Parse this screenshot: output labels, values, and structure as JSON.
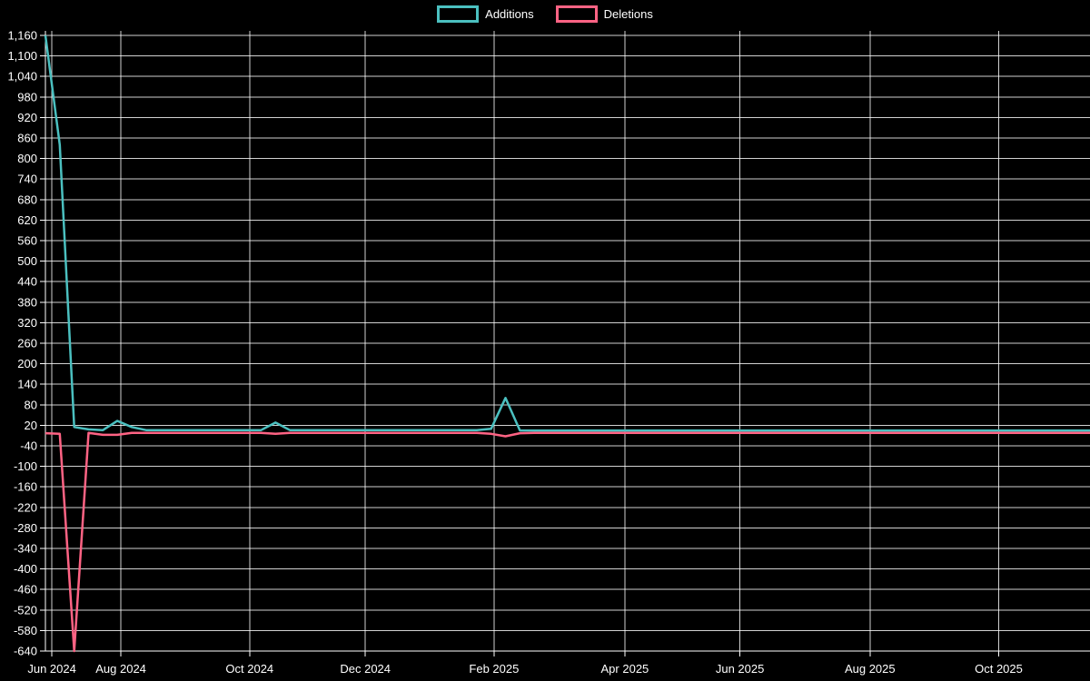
{
  "chart_data": {
    "type": "line",
    "title": "",
    "background_color": "#000000",
    "text_color": "#ffffff",
    "grid_color": "#ffffff",
    "legend_position": "top",
    "x_unit": "weeks since first data point",
    "weeks_total": 72.65,
    "x_ticks": [
      {
        "label": "Jun 2024",
        "week": 0.45
      },
      {
        "label": "Aug 2024",
        "week": 5.25
      },
      {
        "label": "Oct 2024",
        "week": 14.2
      },
      {
        "label": "Dec 2024",
        "week": 22.25
      },
      {
        "label": "Feb 2025",
        "week": 31.2
      },
      {
        "label": "Apr 2025",
        "week": 40.3
      },
      {
        "label": "Jun 2025",
        "week": 48.3
      },
      {
        "label": "Aug 2025",
        "week": 57.35
      },
      {
        "label": "Oct 2025",
        "week": 66.3
      }
    ],
    "y_axis": {
      "min": -640,
      "max": 1160,
      "step": 60
    },
    "series": [
      {
        "name": "Additions",
        "color": "#4bc0c0",
        "values": [
          1160,
          840,
          15,
          8,
          6,
          33,
          15,
          6,
          6,
          6,
          6,
          6,
          6,
          6,
          6,
          6,
          28,
          6,
          6,
          6,
          6,
          6,
          6,
          6,
          6,
          6,
          6,
          6,
          6,
          6,
          6,
          10,
          100,
          5,
          5,
          5,
          5,
          5,
          5,
          5,
          5,
          5,
          5,
          5,
          5,
          5,
          5,
          5,
          5,
          5,
          5,
          5,
          5,
          5,
          5,
          5,
          5,
          5,
          5,
          5,
          5,
          5,
          5,
          5,
          5,
          5,
          5,
          5,
          5,
          5,
          5,
          5,
          5
        ]
      },
      {
        "name": "Deletions",
        "color": "#ff6384",
        "values": [
          -3,
          -5,
          -640,
          -2,
          -8,
          -8,
          -2,
          -2,
          -2,
          -2,
          -2,
          -2,
          -2,
          -2,
          -2,
          -2,
          -5,
          -2,
          -2,
          -2,
          -2,
          -2,
          -2,
          -2,
          -2,
          -2,
          -2,
          -2,
          -2,
          -2,
          -2,
          -5,
          -12,
          -3,
          -2,
          -2,
          -2,
          -2,
          -2,
          -2,
          -2,
          -2,
          -2,
          -2,
          -2,
          -2,
          -2,
          -2,
          -2,
          -2,
          -2,
          -2,
          -2,
          -2,
          -2,
          -2,
          -2,
          -2,
          -2,
          -2,
          -2,
          -2,
          -2,
          -2,
          -2,
          -2,
          -2,
          -2,
          -2,
          -2,
          -2,
          -2,
          -2
        ]
      }
    ]
  }
}
